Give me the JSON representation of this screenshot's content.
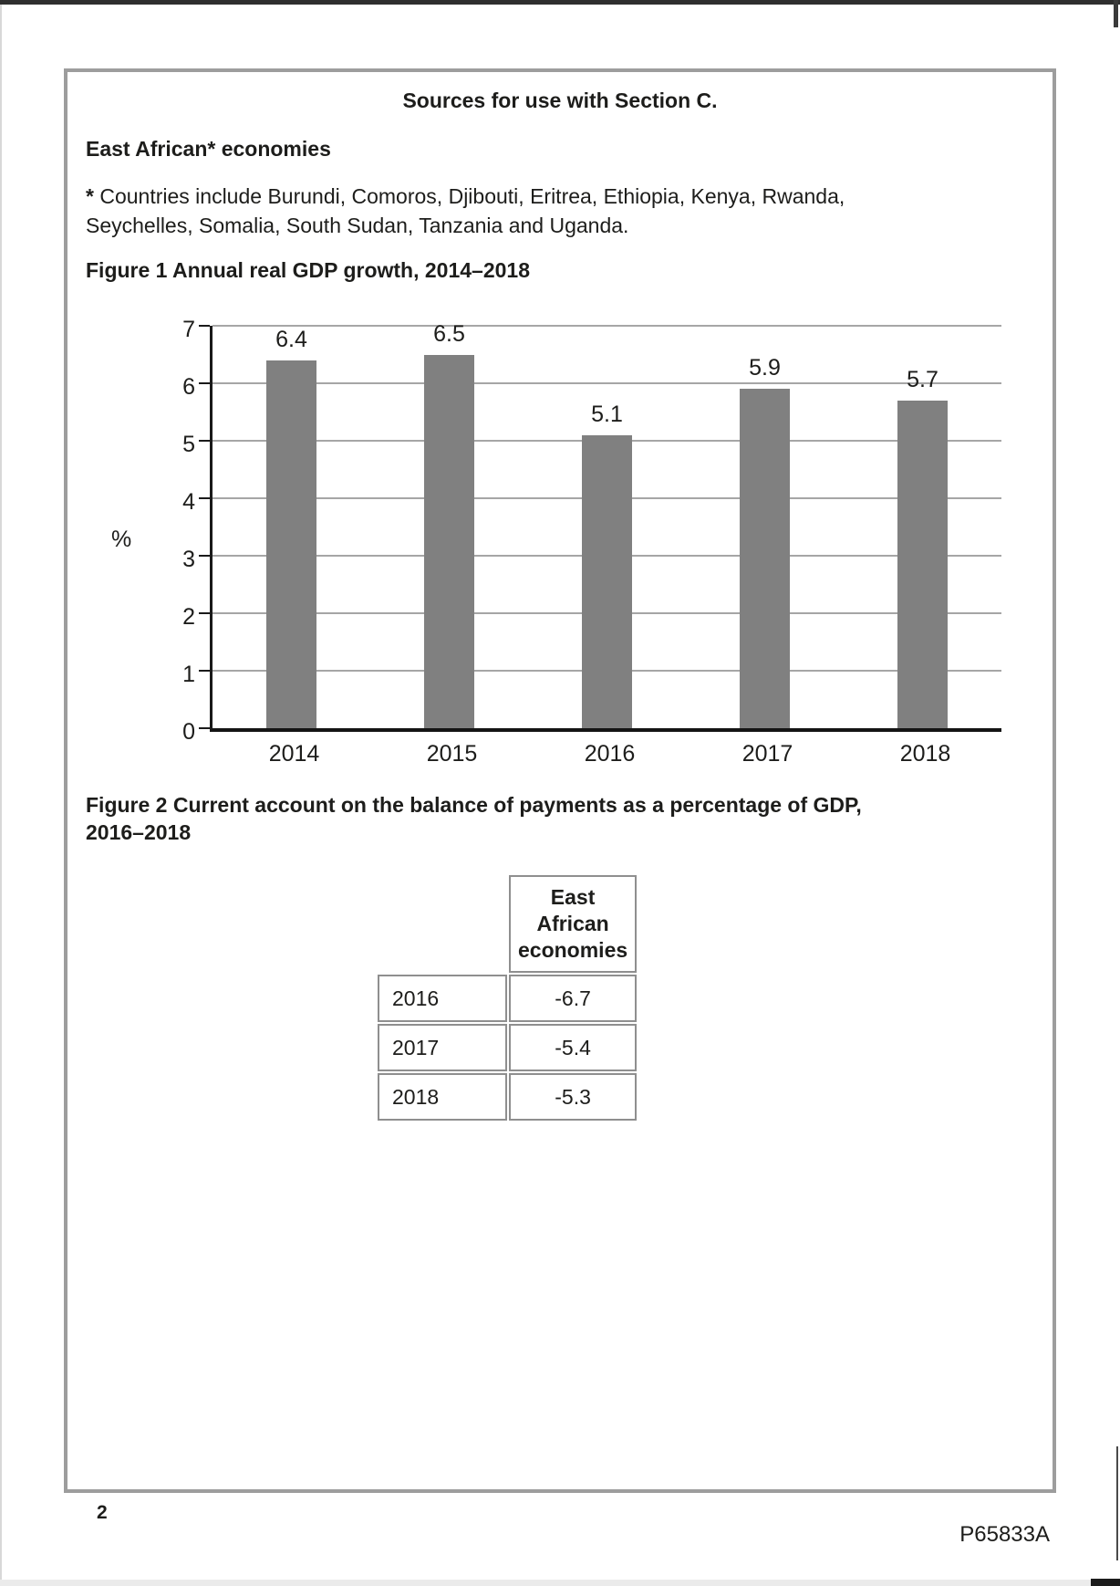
{
  "page": {
    "title": "Sources for use with Section C.",
    "heading": "East African* economies",
    "footnote_marker": "*",
    "footnote_text": " Countries include Burundi, Comoros, Djibouti, Eritrea, Ethiopia, Kenya, Rwanda, Seychelles, Somalia, South Sudan, Tanzania and Uganda.",
    "page_number": "2",
    "paper_code": "P65833A"
  },
  "figure1": {
    "caption": "Figure 1 Annual real GDP growth, 2014–2018"
  },
  "figure2": {
    "caption_line1": "Figure 2 Current account on the balance of payments as a percentage of GDP,",
    "caption_line2": "2016–2018"
  },
  "chart_data": {
    "type": "bar",
    "title": "Figure 1 Annual real GDP growth, 2014–2018",
    "categories": [
      "2014",
      "2015",
      "2016",
      "2017",
      "2018"
    ],
    "values": [
      6.4,
      6.5,
      5.1,
      5.9,
      5.7
    ],
    "value_labels": [
      "6.4",
      "6.5",
      "5.1",
      "5.9",
      "5.7"
    ],
    "xlabel": "",
    "ylabel": "%",
    "ylim": [
      0,
      7
    ],
    "yticks": [
      0,
      1,
      2,
      3,
      4,
      5,
      6,
      7
    ],
    "grid": true,
    "legend": false,
    "bar_color": "#808080",
    "gridline_color": "#a6a6a6"
  },
  "table": {
    "header": "East African economies",
    "rows": [
      {
        "year": "2016",
        "value": "-6.7"
      },
      {
        "year": "2017",
        "value": "-5.4"
      },
      {
        "year": "2018",
        "value": "-5.3"
      }
    ]
  }
}
